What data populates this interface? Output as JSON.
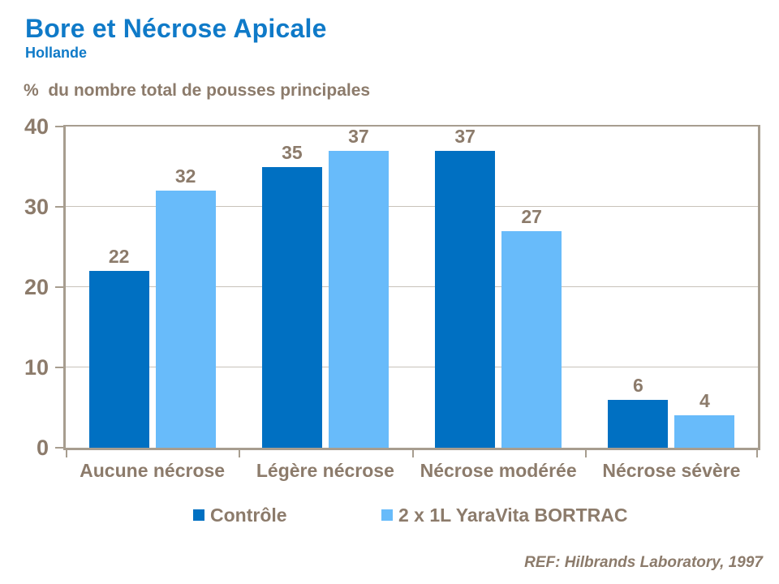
{
  "header": {
    "title": "Bore et Nécrose Apicale",
    "subtitle": "Hollande"
  },
  "axis_title": "%  du nombre total de pousses principales",
  "footer": {
    "reference": "REF: Hilbrands Laboratory, 1997"
  },
  "colors": {
    "title_blue": "#0F7AC8",
    "control_blue": "#0070C2",
    "bortrac_blue": "#68BBFA",
    "text_brown": "#8C7B6B",
    "plot_border": "#A79D8F",
    "gridline": "#C8C2BA",
    "background": "#FFFFFF"
  },
  "chart_data": {
    "type": "bar",
    "title": "Bore et Nécrose Apicale",
    "subtitle": "Hollande",
    "ylabel": "%  du nombre total de pousses principales",
    "categories": [
      "Aucune nécrose",
      "Légère nécrose",
      "Nécrose modérée",
      "Nécrose sévère"
    ],
    "series": [
      {
        "name": "Contrôle",
        "color_key": "control_blue",
        "values": [
          22,
          35,
          37,
          6
        ]
      },
      {
        "name": "2 x 1L YaraVita BORTRAC",
        "color_key": "bortrac_blue",
        "values": [
          32,
          37,
          27,
          4
        ]
      }
    ],
    "ylim": [
      0,
      40
    ],
    "yticks": [
      0,
      10,
      20,
      30,
      40
    ],
    "grid": true,
    "data_labels": true,
    "legend_position": "bottom"
  }
}
